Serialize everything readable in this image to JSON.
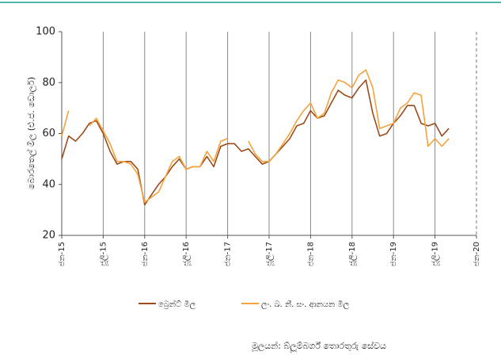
{
  "chart_data": {
    "type": "line",
    "y_label": "බොරතෙල් මිල (එ.ජ. ඩොලර්)",
    "source": "මූලයන්: බ්ලූම්බර්ග් තොරතුරු සේවය",
    "categories": [
      "ජන-15",
      null,
      null,
      null,
      null,
      null,
      "ජූලි-15",
      null,
      null,
      null,
      null,
      null,
      "ජන-16",
      null,
      null,
      null,
      null,
      null,
      "ජූලි-16",
      null,
      null,
      null,
      null,
      null,
      "ජන-17",
      null,
      null,
      null,
      null,
      null,
      "ජූලි-17",
      null,
      null,
      null,
      null,
      null,
      "ජන-18",
      null,
      null,
      null,
      null,
      null,
      "ජූලි-18",
      null,
      null,
      null,
      null,
      null,
      "ජන-19",
      null,
      null,
      null,
      null,
      null,
      "ජූලි-19",
      null,
      null,
      null,
      null,
      null,
      "ජන-20"
    ],
    "series": [
      {
        "name": "බ්‍රෙන්ට් මිල",
        "color": "#9c4a1a",
        "values": [
          50,
          59,
          57,
          60,
          64,
          65,
          60,
          53,
          48,
          49,
          49,
          46,
          32,
          36,
          40,
          43,
          47,
          50,
          46,
          47,
          47,
          51,
          47,
          55,
          56,
          56,
          53,
          54,
          51,
          48,
          49,
          52,
          55,
          58,
          63,
          64,
          69,
          66,
          67,
          72,
          77,
          75,
          74,
          78,
          81,
          68,
          59,
          60,
          64,
          67,
          71,
          71,
          64,
          63,
          64,
          59,
          62,
          null,
          null,
          null,
          null
        ]
      },
      {
        "name": "ලං. ඛ. නී. සං. ආනයන මිල",
        "color": "#f4a23c",
        "values": [
          59,
          69,
          null,
          null,
          63,
          66,
          61,
          56,
          49,
          49,
          48,
          44,
          33,
          35,
          37,
          43,
          49,
          51,
          46,
          47,
          47,
          53,
          49,
          57,
          58,
          null,
          null,
          57,
          52,
          49,
          49,
          52,
          56,
          60,
          65,
          69,
          72,
          66,
          68,
          76,
          81,
          80,
          78,
          83,
          85,
          78,
          62,
          63,
          64,
          70,
          72,
          76,
          75,
          55,
          58,
          55,
          58,
          null,
          null,
          null,
          null
        ]
      }
    ],
    "ylim": [
      20,
      100
    ],
    "yticks": [
      20,
      40,
      60,
      80,
      100
    ],
    "grid": true
  }
}
